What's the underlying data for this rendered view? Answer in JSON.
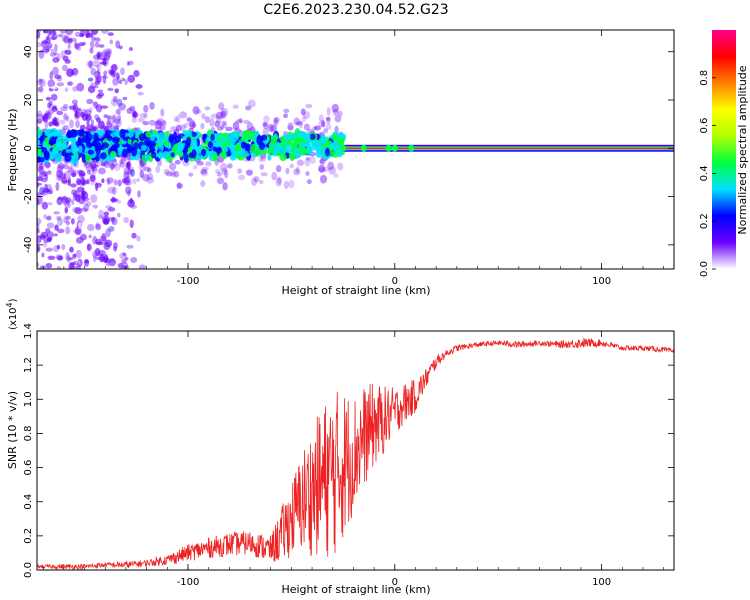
{
  "figure_title": "C2E6.2023.230.04.52.G23",
  "chart_data": [
    {
      "type": "heatmap",
      "title": "C2E6.2023.230.04.52.G23",
      "xlabel": "Height of straight line (km)",
      "ylabel": "Frequency (Hz)",
      "xlim": [
        -173,
        135
      ],
      "ylim": [
        -50,
        49
      ],
      "xticks": [
        -100,
        0,
        100
      ],
      "xtick_labels": [
        "-100",
        "0",
        "100"
      ],
      "yticks": [
        -40,
        -20,
        0,
        20,
        40
      ],
      "ytick_labels": [
        "-40",
        "-20",
        "0",
        "20",
        "40"
      ],
      "colorbar": {
        "label": "Normalized spectral amplitude",
        "range": [
          0.0,
          1.0
        ],
        "ticks": [
          0.0,
          0.2,
          0.4,
          0.6,
          0.8
        ],
        "tick_labels": [
          "0.0",
          "0.2",
          "0.4",
          "0.6",
          "0.8"
        ],
        "colormap": [
          "#ffffff",
          "#6a00ff",
          "#0000ff",
          "#00e0ff",
          "#00ff40",
          "#b0ff00",
          "#ffff00",
          "#ff8000",
          "#ff0000",
          "#ff0088"
        ]
      },
      "features": [
        {
          "name": "scatter region",
          "x_range": [
            -173,
            -120
          ],
          "freq_range": [
            -50,
            49
          ],
          "amplitude": 0.15
        },
        {
          "name": "broadband band",
          "x_range": [
            -173,
            -25
          ],
          "freq_range": [
            -8,
            10
          ],
          "amplitude": 0.35
        },
        {
          "name": "carrier line",
          "x_range": [
            -25,
            135
          ],
          "freq_center": 0,
          "amplitude": 0.95
        }
      ]
    },
    {
      "type": "line",
      "xlabel": "Height of straight line (km)",
      "ylabel": "SNR (10 * v/v)",
      "y_multiplier": "(x10",
      "y_multiplier_exp": "4",
      "y_multiplier_close": ")",
      "xlim": [
        -173,
        135
      ],
      "ylim": [
        0.0,
        1.4
      ],
      "xticks": [
        -100,
        0,
        100
      ],
      "xtick_labels": [
        "-100",
        "0",
        "100"
      ],
      "yticks": [
        0.0,
        0.2,
        0.4,
        0.6,
        0.8,
        1.0,
        1.2,
        1.4
      ],
      "ytick_labels": [
        "0.0",
        "0.2",
        "0.4",
        "0.6",
        "0.8",
        "1.0",
        "1.2",
        "1.4"
      ],
      "line_color": "#ee2222",
      "series": [
        {
          "name": "SNR",
          "x": [
            -173,
            -160,
            -150,
            -140,
            -130,
            -120,
            -110,
            -100,
            -90,
            -80,
            -70,
            -60,
            -55,
            -50,
            -45,
            -40,
            -35,
            -30,
            -25,
            -20,
            -15,
            -10,
            -5,
            0,
            5,
            10,
            15,
            20,
            25,
            30,
            35,
            40,
            50,
            60,
            70,
            80,
            90,
            100,
            110,
            120,
            130,
            135
          ],
          "y": [
            0.02,
            0.02,
            0.02,
            0.03,
            0.03,
            0.04,
            0.06,
            0.1,
            0.13,
            0.15,
            0.16,
            0.12,
            0.2,
            0.3,
            0.4,
            0.46,
            0.52,
            0.56,
            0.62,
            0.68,
            0.78,
            0.85,
            0.88,
            0.93,
            0.98,
            1.02,
            1.12,
            1.22,
            1.27,
            1.3,
            1.31,
            1.32,
            1.33,
            1.32,
            1.33,
            1.32,
            1.33,
            1.33,
            1.3,
            1.3,
            1.29,
            1.28
          ],
          "noise": [
            0.01,
            0.015,
            0.015,
            0.015,
            0.02,
            0.02,
            0.03,
            0.05,
            0.06,
            0.07,
            0.07,
            0.08,
            0.16,
            0.22,
            0.3,
            0.38,
            0.45,
            0.5,
            0.45,
            0.35,
            0.3,
            0.25,
            0.2,
            0.14,
            0.12,
            0.1,
            0.06,
            0.04,
            0.02,
            0.02,
            0.015,
            0.015,
            0.015,
            0.02,
            0.015,
            0.02,
            0.03,
            0.02,
            0.015,
            0.015,
            0.015,
            0.015
          ]
        }
      ]
    }
  ]
}
